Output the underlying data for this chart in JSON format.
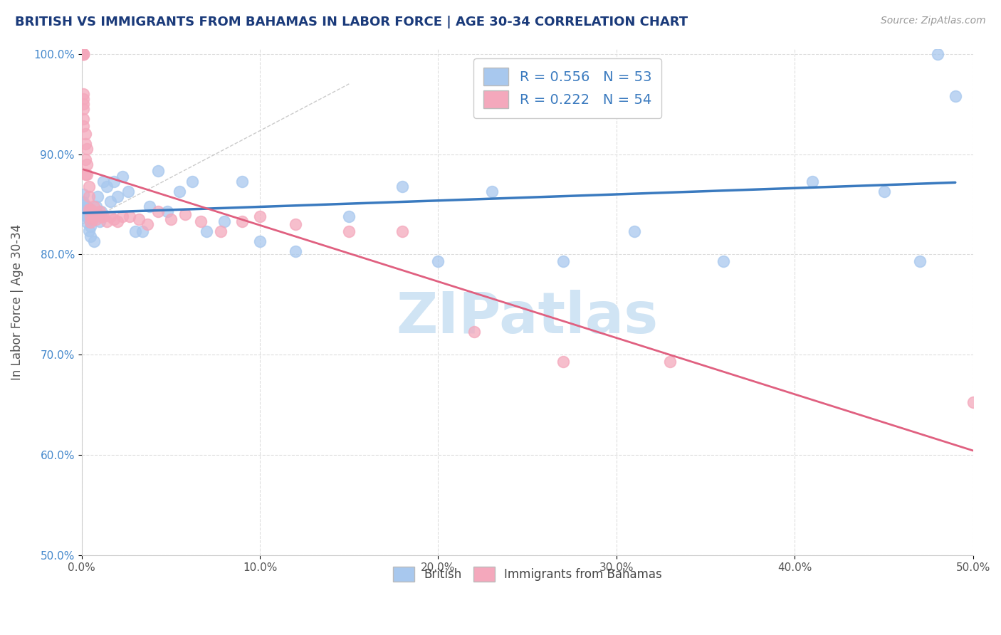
{
  "title": "BRITISH VS IMMIGRANTS FROM BAHAMAS IN LABOR FORCE | AGE 30-34 CORRELATION CHART",
  "source_text": "Source: ZipAtlas.com",
  "ylabel": "In Labor Force | Age 30-34",
  "xlim": [
    0.0,
    0.5
  ],
  "ylim": [
    0.5,
    1.005
  ],
  "xtick_labels": [
    "0.0%",
    "10.0%",
    "20.0%",
    "30.0%",
    "40.0%",
    "50.0%"
  ],
  "xtick_vals": [
    0.0,
    0.1,
    0.2,
    0.3,
    0.4,
    0.5
  ],
  "ytick_labels": [
    "50.0%",
    "60.0%",
    "70.0%",
    "80.0%",
    "90.0%",
    "100.0%"
  ],
  "ytick_vals": [
    0.5,
    0.6,
    0.7,
    0.8,
    0.9,
    1.0
  ],
  "british_R": 0.556,
  "british_N": 53,
  "bahamas_R": 0.222,
  "bahamas_N": 54,
  "blue_color": "#a8c8ee",
  "pink_color": "#f4a8bc",
  "blue_line_color": "#3a7abf",
  "pink_line_color": "#e06080",
  "title_color": "#1a3a7a",
  "axis_label_color": "#555555",
  "tick_color_x": "#555555",
  "tick_color_y": "#4488cc",
  "watermark_color": "#d0e4f4",
  "legend_blue_label": "British",
  "legend_pink_label": "Immigrants from Bahamas",
  "british_x": [
    0.001,
    0.001,
    0.001,
    0.001,
    0.002,
    0.002,
    0.002,
    0.003,
    0.003,
    0.003,
    0.003,
    0.004,
    0.004,
    0.005,
    0.005,
    0.006,
    0.006,
    0.007,
    0.008,
    0.009,
    0.01,
    0.011,
    0.012,
    0.014,
    0.016,
    0.018,
    0.02,
    0.023,
    0.026,
    0.03,
    0.034,
    0.038,
    0.043,
    0.048,
    0.055,
    0.062,
    0.07,
    0.08,
    0.09,
    0.1,
    0.12,
    0.15,
    0.18,
    0.2,
    0.23,
    0.27,
    0.31,
    0.36,
    0.41,
    0.45,
    0.47,
    0.48,
    0.49
  ],
  "british_y": [
    0.85,
    0.843,
    0.86,
    0.852,
    0.843,
    0.84,
    0.845,
    0.838,
    0.832,
    0.848,
    0.842,
    0.824,
    0.835,
    0.828,
    0.818,
    0.838,
    0.843,
    0.813,
    0.848,
    0.858,
    0.833,
    0.843,
    0.873,
    0.868,
    0.853,
    0.873,
    0.858,
    0.878,
    0.863,
    0.823,
    0.823,
    0.848,
    0.883,
    0.843,
    0.863,
    0.873,
    0.823,
    0.833,
    0.873,
    0.813,
    0.803,
    0.838,
    0.868,
    0.793,
    0.863,
    0.793,
    0.823,
    0.793,
    0.873,
    0.863,
    0.793,
    1.0,
    0.958
  ],
  "bahamas_x": [
    0.001,
    0.001,
    0.001,
    0.001,
    0.001,
    0.001,
    0.001,
    0.001,
    0.001,
    0.001,
    0.002,
    0.002,
    0.002,
    0.002,
    0.003,
    0.003,
    0.003,
    0.004,
    0.004,
    0.004,
    0.005,
    0.005,
    0.005,
    0.006,
    0.006,
    0.007,
    0.008,
    0.008,
    0.009,
    0.01,
    0.011,
    0.012,
    0.014,
    0.016,
    0.018,
    0.02,
    0.023,
    0.027,
    0.032,
    0.037,
    0.043,
    0.05,
    0.058,
    0.067,
    0.078,
    0.09,
    0.1,
    0.12,
    0.15,
    0.18,
    0.22,
    0.27,
    0.33,
    0.5
  ],
  "bahamas_y": [
    1.0,
    1.0,
    1.0,
    1.0,
    0.96,
    0.955,
    0.95,
    0.945,
    0.935,
    0.928,
    0.92,
    0.91,
    0.895,
    0.88,
    0.905,
    0.89,
    0.88,
    0.868,
    0.858,
    0.845,
    0.845,
    0.838,
    0.832,
    0.843,
    0.835,
    0.848,
    0.84,
    0.835,
    0.84,
    0.843,
    0.838,
    0.838,
    0.833,
    0.838,
    0.835,
    0.833,
    0.838,
    0.838,
    0.835,
    0.83,
    0.843,
    0.835,
    0.84,
    0.833,
    0.823,
    0.833,
    0.838,
    0.83,
    0.823,
    0.823,
    0.723,
    0.693,
    0.693,
    0.653
  ]
}
